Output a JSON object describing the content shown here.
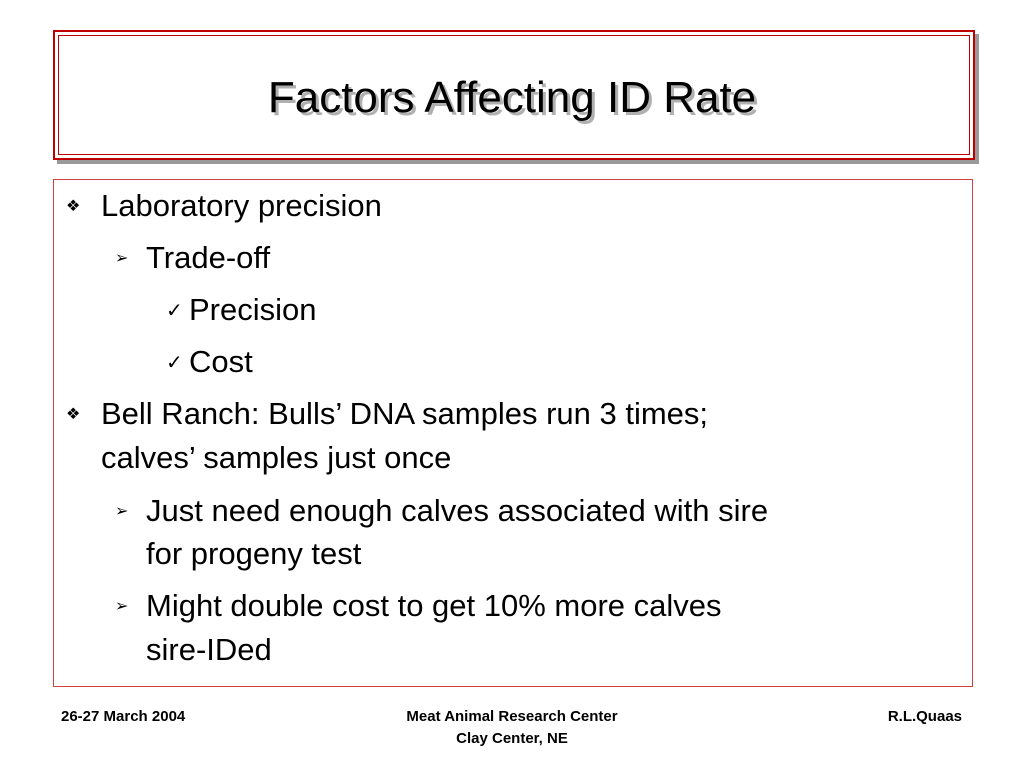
{
  "slide": {
    "title": "Factors Affecting ID Rate",
    "items": [
      {
        "bullet": "❖",
        "lines": [
          "Laboratory precision"
        ]
      },
      {
        "bullet": "➢",
        "lines": [
          "Trade-off"
        ]
      },
      {
        "bullet": "✓",
        "lines": [
          "Precision"
        ]
      },
      {
        "bullet": "✓",
        "lines": [
          "Cost"
        ]
      },
      {
        "bullet": "❖",
        "lines": [
          "Bell Ranch: Bulls’ DNA samples run 3 times;",
          "calves’ samples just once"
        ]
      },
      {
        "bullet": "➢",
        "lines": [
          "Just need enough calves associated with sire",
          "for progeny test"
        ]
      },
      {
        "bullet": "➢",
        "lines": [
          "Might double cost to get 10% more calves",
          "sire-IDed"
        ]
      }
    ]
  },
  "footer": {
    "date": "26-27 March 2004",
    "center_line1": "Meat Animal Research Center",
    "center_line2": "Clay Center, NE",
    "author": "R.L.Quaas"
  },
  "colors": {
    "frame_border": "#c00000",
    "title_shadow": "#b0b0b0"
  }
}
